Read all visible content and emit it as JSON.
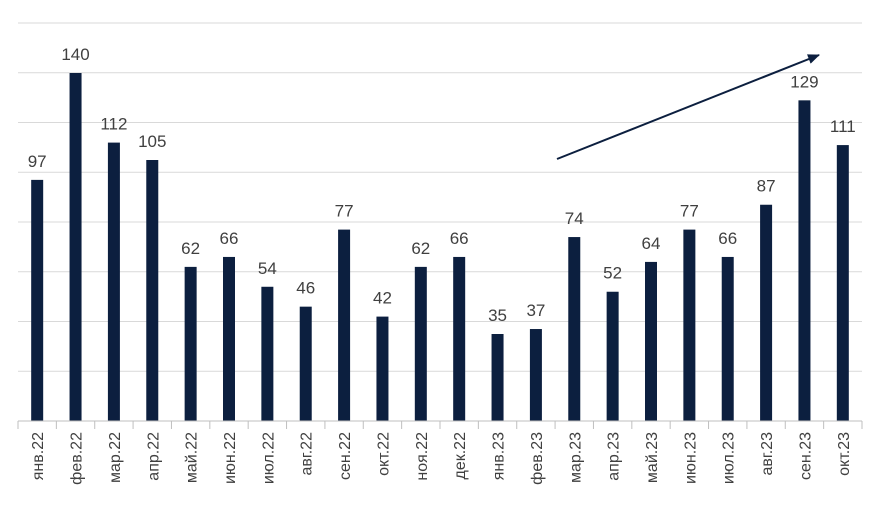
{
  "chart_data": {
    "type": "bar",
    "title": "",
    "xlabel": "",
    "ylabel": "",
    "categories": [
      "янв.22",
      "фев.22",
      "мар.22",
      "апр.22",
      "май.22",
      "июн.22",
      "июл.22",
      "авг.22",
      "сен.22",
      "окт.22",
      "ноя.22",
      "дек.22",
      "янв.23",
      "фев.23",
      "мар.23",
      "апр.23",
      "май.23",
      "июн.23",
      "июл.23",
      "авг.23",
      "сен.23",
      "окт.23"
    ],
    "values": [
      97,
      140,
      112,
      105,
      62,
      66,
      54,
      46,
      77,
      42,
      62,
      66,
      35,
      37,
      74,
      52,
      64,
      77,
      66,
      87,
      129,
      111
    ],
    "ylim": [
      0,
      140
    ],
    "grid": true,
    "gridline_count": 8,
    "y_axis_labels_shown": false,
    "data_labels": true,
    "legend": "none",
    "annotation": "upward trend arrow from фев.23 toward сен.23",
    "colors": {
      "bar": "#0c1f3f",
      "grid": "#d9d9d9",
      "arrow": "#0c1f3f",
      "text": "#404040"
    }
  }
}
